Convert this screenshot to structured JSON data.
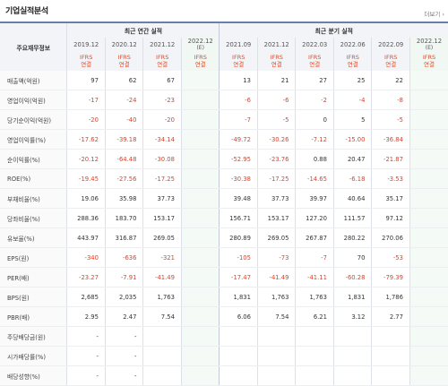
{
  "page": {
    "title": "기업실적분석",
    "more_label": "더보기 ›"
  },
  "table": {
    "row_header": "주요재무정보",
    "group_annual": "최근 연간 실적",
    "group_quarter": "최근 분기 실적",
    "periods": [
      "2019.12",
      "2020.12",
      "2021.12",
      "2022.12",
      "2021.09",
      "2021.12",
      "2022.03",
      "2022.06",
      "2022.09",
      "2022.12"
    ],
    "estimate_mark": "(E)",
    "ifrs_label": "IFRS",
    "consolidated_label": "연결",
    "rows": [
      {
        "label": "매출액(억원)",
        "values": [
          "97",
          "62",
          "67",
          "",
          "13",
          "21",
          "27",
          "25",
          "22",
          ""
        ]
      },
      {
        "label": "영업이익(억원)",
        "values": [
          "-17",
          "-24",
          "-23",
          "",
          "-6",
          "-6",
          "-2",
          "-4",
          "-8",
          ""
        ]
      },
      {
        "label": "당기순이익(억원)",
        "values": [
          "-20",
          "-40",
          "-20",
          "",
          "-7",
          "-5",
          "0",
          "5",
          "-5",
          ""
        ]
      },
      {
        "label": "영업이익률(%)",
        "values": [
          "-17.62",
          "-39.18",
          "-34.14",
          "",
          "-49.72",
          "-30.26",
          "-7.12",
          "-15.00",
          "-36.84",
          ""
        ]
      },
      {
        "label": "순이익률(%)",
        "values": [
          "-20.12",
          "-64.48",
          "-30.08",
          "",
          "-52.95",
          "-23.76",
          "0.88",
          "20.47",
          "-21.87",
          ""
        ]
      },
      {
        "label": "ROE(%)",
        "values": [
          "-19.45",
          "-27.56",
          "-17.25",
          "",
          "-30.38",
          "-17.25",
          "-14.65",
          "-6.18",
          "-3.53",
          ""
        ]
      },
      {
        "label": "부채비율(%)",
        "values": [
          "19.06",
          "35.98",
          "37.73",
          "",
          "39.48",
          "37.73",
          "39.97",
          "40.64",
          "35.17",
          ""
        ]
      },
      {
        "label": "당좌비율(%)",
        "values": [
          "288.36",
          "183.70",
          "153.17",
          "",
          "156.71",
          "153.17",
          "127.20",
          "111.57",
          "97.12",
          ""
        ]
      },
      {
        "label": "유보율(%)",
        "values": [
          "443.97",
          "316.87",
          "269.05",
          "",
          "280.89",
          "269.05",
          "267.87",
          "280.22",
          "270.06",
          ""
        ]
      },
      {
        "label": "EPS(원)",
        "values": [
          "-340",
          "-636",
          "-321",
          "",
          "-105",
          "-73",
          "-7",
          "70",
          "-53",
          ""
        ]
      },
      {
        "label": "PER(배)",
        "values": [
          "-23.27",
          "-7.91",
          "-41.49",
          "",
          "-17.47",
          "-41.49",
          "-41.11",
          "-60.28",
          "-79.39",
          ""
        ]
      },
      {
        "label": "BPS(원)",
        "values": [
          "2,685",
          "2,035",
          "1,763",
          "",
          "1,831",
          "1,763",
          "1,763",
          "1,831",
          "1,786",
          ""
        ]
      },
      {
        "label": "PBR(배)",
        "values": [
          "2.95",
          "2.47",
          "7.54",
          "",
          "6.06",
          "7.54",
          "6.21",
          "3.12",
          "2.77",
          ""
        ]
      },
      {
        "label": "주당배당금(원)",
        "values": [
          "-",
          "-",
          "",
          "",
          "",
          "",
          "",
          "",
          "",
          ""
        ]
      },
      {
        "label": "시가배당률(%)",
        "values": [
          "-",
          "-",
          "",
          "",
          "",
          "",
          "",
          "",
          "",
          ""
        ]
      },
      {
        "label": "배당성향(%)",
        "values": [
          "-",
          "-",
          "",
          "",
          "",
          "",
          "",
          "",
          "",
          ""
        ]
      }
    ]
  },
  "colors": {
    "negative": "#e0412a",
    "ifrs": "#e14a23",
    "header_bg": "#f3f4f8",
    "estimate_bg": "#f1f8f3",
    "top_border": "#6b7fae"
  }
}
